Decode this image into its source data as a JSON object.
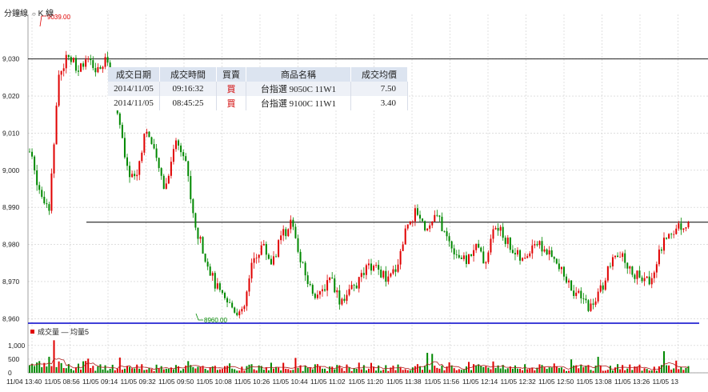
{
  "tabs": {
    "minute_label": "分鐘線",
    "k_label": "K 線"
  },
  "trade_table": {
    "headers": [
      "成交日期",
      "成交時間",
      "買賣",
      "商品名稱",
      "成交均價"
    ],
    "rows": [
      {
        "date": "2014/11/05",
        "time": "09:16:32",
        "side": "買",
        "product": "台指選 9050C 11W1",
        "avg_price": "7.50"
      },
      {
        "date": "2014/11/05",
        "time": "08:45:25",
        "side": "買",
        "product": "台指選 9100C 11W1",
        "avg_price": "3.40"
      }
    ]
  },
  "volume_legend": {
    "label": "成交量",
    "ma_label": "均量5"
  },
  "colors": {
    "up": "#e00000",
    "down": "#008800",
    "ma": "#b02020",
    "grid": "#cccccc",
    "separator": "#0000cc"
  },
  "chart_data": {
    "type": "candlestick",
    "price_axis": {
      "ticks": [
        8960,
        8970,
        8980,
        8990,
        9000,
        9010,
        9020,
        9030
      ],
      "tick_labels": [
        "8,960",
        "8,970",
        "8,980",
        "8,990",
        "9,000",
        "9,010",
        "9,020",
        "9,030"
      ],
      "range": [
        8959,
        9042
      ]
    },
    "volume_axis": {
      "ticks": [
        0,
        500,
        1000
      ],
      "tick_labels": [
        "0",
        "500",
        "1,000"
      ],
      "range": [
        0,
        1200
      ]
    },
    "x_labels": [
      "11/04 13:40",
      "11/05 08:56",
      "11/05 09:14",
      "11/05 09:32",
      "11/05 09:50",
      "11/05 10:08",
      "11/05 10:26",
      "11/05 10:44",
      "11/05 11:02",
      "11/05 11:20",
      "11/05 11:38",
      "11/05 11:56",
      "11/05 12:14",
      "11/05 12:32",
      "11/05 12:50",
      "11/05 13:08",
      "11/05 13:26",
      "11/05 13"
    ],
    "high_label": "9039.00",
    "low_label": "8960.00",
    "reference_lines": [
      9030,
      8986
    ],
    "price_waypoints": [
      9005,
      8995,
      8990,
      9025,
      9032,
      9027,
      9029,
      9026,
      9030,
      9018,
      9000,
      8998,
      9012,
      9003,
      8995,
      9008,
      9005,
      8985,
      8978,
      8970,
      8965,
      8963,
      8961,
      8975,
      8980,
      8975,
      8982,
      8986,
      8975,
      8968,
      8966,
      8972,
      8965,
      8967,
      8970,
      8974,
      8973,
      8970,
      8975,
      8986,
      8989,
      8984,
      8988,
      8982,
      8978,
      8975,
      8980,
      8975,
      8985,
      8982,
      8978,
      8975,
      8981,
      8979,
      8976,
      8972,
      8968,
      8965,
      8963,
      8968,
      8975,
      8977,
      8973,
      8971,
      8970,
      8978,
      8983,
      8985,
      8986
    ]
  }
}
